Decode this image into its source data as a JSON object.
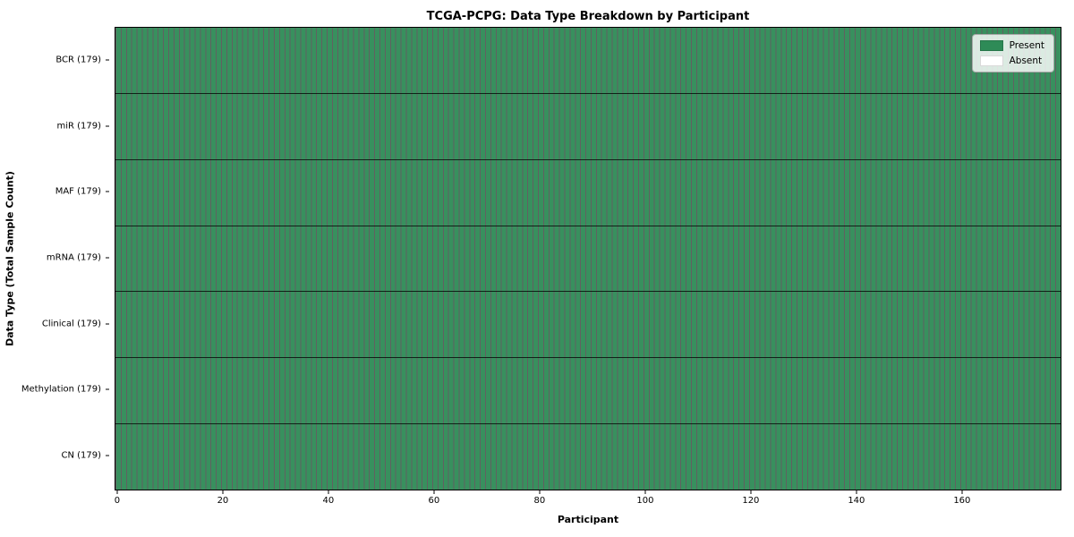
{
  "chart_data": {
    "type": "heatmap",
    "title": "TCGA-PCPG: Data Type Breakdown by Participant",
    "xlabel": "Participant",
    "ylabel": "Data Type (Total Sample Count)",
    "n_participants": 179,
    "x_range": [
      0,
      179
    ],
    "x_ticks": [
      0,
      20,
      40,
      60,
      80,
      100,
      120,
      140,
      160
    ],
    "rows": [
      {
        "label": "BCR (179)",
        "data_type": "BCR",
        "total_samples": 179,
        "present_count": 179,
        "absent_count": 0
      },
      {
        "label": "miR (179)",
        "data_type": "miR",
        "total_samples": 179,
        "present_count": 179,
        "absent_count": 0
      },
      {
        "label": "MAF (179)",
        "data_type": "MAF",
        "total_samples": 179,
        "present_count": 179,
        "absent_count": 0
      },
      {
        "label": "mRNA (179)",
        "data_type": "mRNA",
        "total_samples": 179,
        "present_count": 179,
        "absent_count": 0
      },
      {
        "label": "Clinical (179)",
        "data_type": "Clinical",
        "total_samples": 179,
        "present_count": 179,
        "absent_count": 0
      },
      {
        "label": "Methylation (179)",
        "data_type": "Methylation",
        "total_samples": 179,
        "present_count": 179,
        "absent_count": 0
      },
      {
        "label": "CN (179)",
        "data_type": "CN",
        "total_samples": 179,
        "present_count": 179,
        "absent_count": 0
      }
    ],
    "legend": [
      {
        "label": "Present",
        "color": "#2e8b57"
      },
      {
        "label": "Absent",
        "color": "#ffffff"
      }
    ],
    "colors": {
      "present_cell": "#38905e",
      "absent_cell": "#ffffff",
      "grid_line": "rgba(0,0,0,0.62)",
      "plot_border": "#000000"
    },
    "legend_position": "upper right",
    "grid": "cell borders on"
  }
}
